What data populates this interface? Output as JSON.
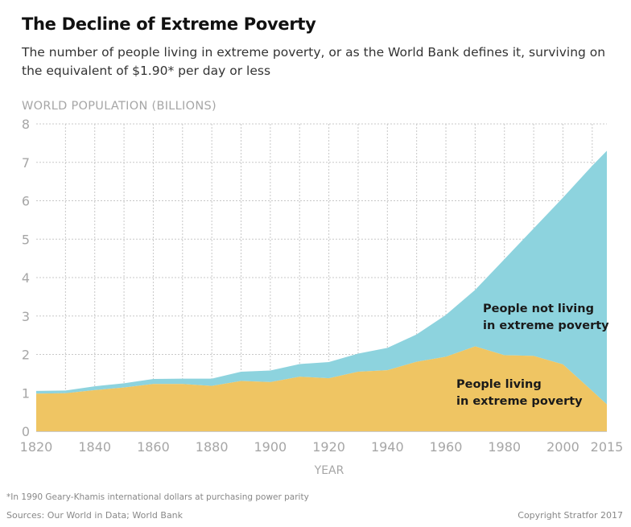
{
  "title": "The Decline of Extreme Poverty",
  "subtitle": "The number of people living in extreme poverty, or as the World Bank defines it, surviving on the equivalent of $1.90* per day or less",
  "footnote": "*In 1990 Geary-Khamis international dollars at purchasing power parity",
  "sources": "Sources: Our World in Data; World Bank",
  "copyright": "Copyright Stratfor 2017",
  "colors": {
    "poverty": "#efc563",
    "not_poverty": "#8dd3de",
    "grid": "#c8c8c8",
    "axis_text": "#a6a6a6"
  },
  "chart_data": {
    "type": "area",
    "stacked": true,
    "ylabel": "WORLD POPULATION (BILLIONS)",
    "xlabel": "YEAR",
    "ylim": [
      0,
      8
    ],
    "yticks": [
      0,
      1,
      2,
      3,
      4,
      5,
      6,
      7,
      8
    ],
    "xticks": [
      1820,
      1840,
      1860,
      1880,
      1900,
      1920,
      1940,
      1960,
      1980,
      2000,
      2015
    ],
    "grid": true,
    "x": [
      1820,
      1830,
      1840,
      1850,
      1860,
      1870,
      1880,
      1890,
      1900,
      1910,
      1920,
      1930,
      1940,
      1950,
      1960,
      1970,
      1980,
      1990,
      2000,
      2010,
      2015
    ],
    "series": [
      {
        "name": "People living in extreme poverty",
        "label_line1": "People living",
        "label_line2": "in extreme poverty",
        "values": [
          0.98,
          0.99,
          1.07,
          1.14,
          1.23,
          1.23,
          1.18,
          1.31,
          1.28,
          1.42,
          1.38,
          1.55,
          1.59,
          1.81,
          1.94,
          2.21,
          1.98,
          1.96,
          1.74,
          1.05,
          0.7
        ]
      },
      {
        "name": "People not living in extreme poverty",
        "label_line1": "People not living",
        "label_line2": "in extreme poverty",
        "values": [
          0.07,
          0.07,
          0.1,
          0.11,
          0.13,
          0.14,
          0.19,
          0.24,
          0.3,
          0.33,
          0.42,
          0.47,
          0.58,
          0.71,
          1.09,
          1.47,
          2.5,
          3.32,
          4.34,
          5.86,
          6.6
        ]
      }
    ]
  }
}
